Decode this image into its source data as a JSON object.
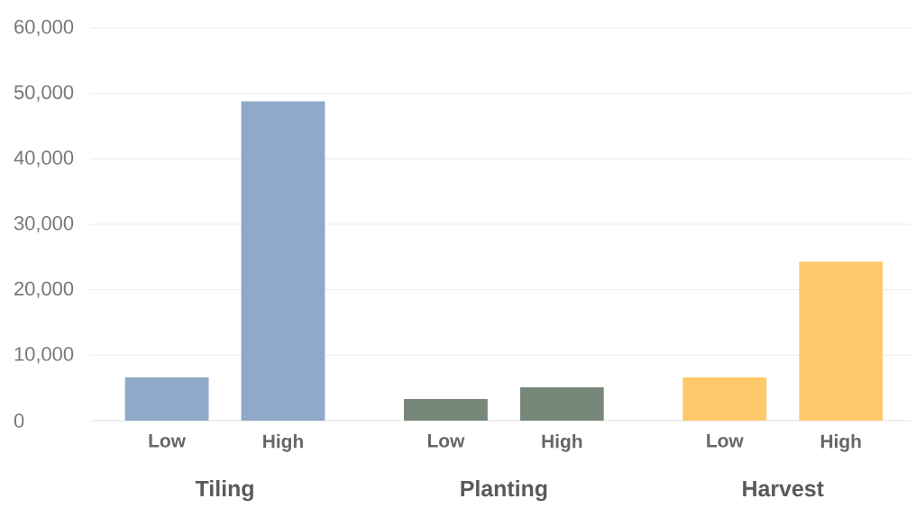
{
  "chart_data": {
    "type": "bar",
    "categories": [
      "Low",
      "High",
      "Low",
      "High",
      "Low",
      "High"
    ],
    "values": [
      6600,
      48800,
      3300,
      5100,
      6600,
      24300
    ],
    "colors": [
      "#8faac8",
      "#8faac8",
      "#77887a",
      "#77887a",
      "#fec96b",
      "#fec96b"
    ],
    "annotations": [
      "Tiling",
      "Planting",
      "Harvest"
    ],
    "ylim": [
      0,
      60000
    ],
    "yticks": [
      0,
      {
        "value": 10000,
        "label": "10,000"
      },
      {
        "value": 20000,
        "label": "20,000"
      },
      {
        "value": 30000,
        "label": "30,000"
      },
      {
        "value": 40000,
        "label": "40,000"
      },
      {
        "value": 50000,
        "label": "50,000"
      },
      {
        "value": 60000,
        "label": "60,000"
      }
    ],
    "grid": "y"
  }
}
